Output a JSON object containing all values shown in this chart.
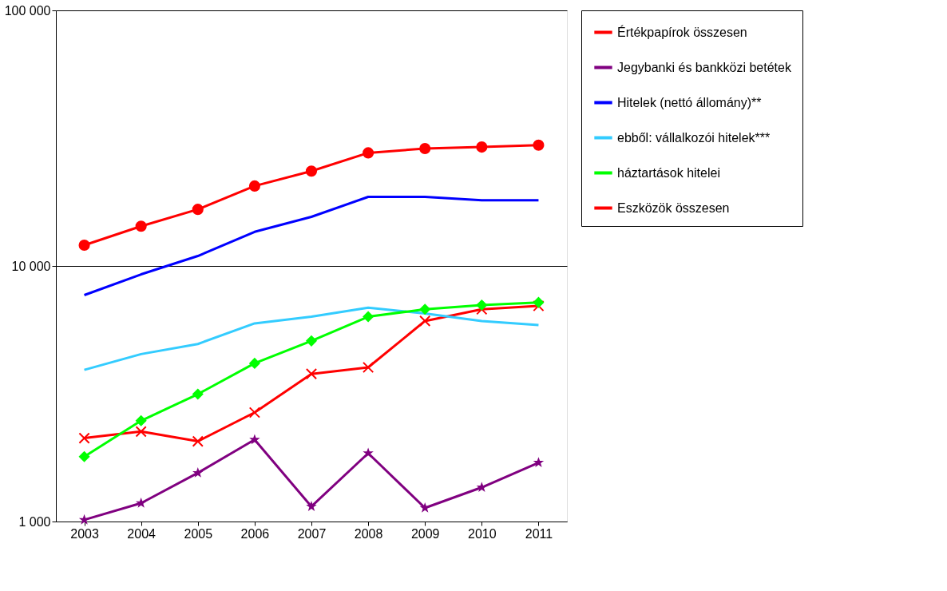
{
  "chart_data": {
    "type": "line",
    "log": "y",
    "grid": "y",
    "legend": "right",
    "categories": [
      "2003",
      "2004",
      "2005",
      "2006",
      "2007",
      "2008",
      "2009",
      "2010",
      "2011"
    ],
    "ylim": [
      1000,
      100000
    ],
    "yticks": [
      {
        "value": 1000,
        "label": "1 000"
      },
      {
        "value": 10000,
        "label": "10 000"
      },
      {
        "value": 100000,
        "label": "100 000"
      }
    ],
    "series": [
      {
        "name": "Értékpapírok összesen",
        "color": "#ff0000",
        "marker": "cross",
        "values": [
          2120,
          2250,
          2060,
          2670,
          3780,
          4010,
          6090,
          6770,
          6980
        ]
      },
      {
        "name": "Jegybanki és bankközi betétek",
        "color": "#800080",
        "marker": "star",
        "values": [
          1015,
          1180,
          1550,
          2090,
          1145,
          1850,
          1130,
          1360,
          1700
        ]
      },
      {
        "name": "Hitelek (nettó állomány)**",
        "color": "#0000ff",
        "marker": "none",
        "values": [
          7690,
          9270,
          10940,
          13600,
          15570,
          18630,
          18630,
          18070,
          18070
        ]
      },
      {
        "name": "   ebből: vállalkozói hitelek***",
        "color": "#33ccff",
        "marker": "none",
        "values": [
          3920,
          4520,
          4950,
          5960,
          6330,
          6870,
          6520,
          6090,
          5870
        ]
      },
      {
        "name": "               háztartások hitelei",
        "color": "#00ff00",
        "marker": "diamond",
        "values": [
          1795,
          2480,
          3150,
          4160,
          5090,
          6330,
          6770,
          7030,
          7200
        ]
      },
      {
        "name": "Eszközök összesen",
        "color": "#ff0000",
        "marker": "circle",
        "values": [
          12060,
          14300,
          16650,
          20550,
          23500,
          27700,
          28800,
          29200,
          29700
        ]
      }
    ]
  }
}
